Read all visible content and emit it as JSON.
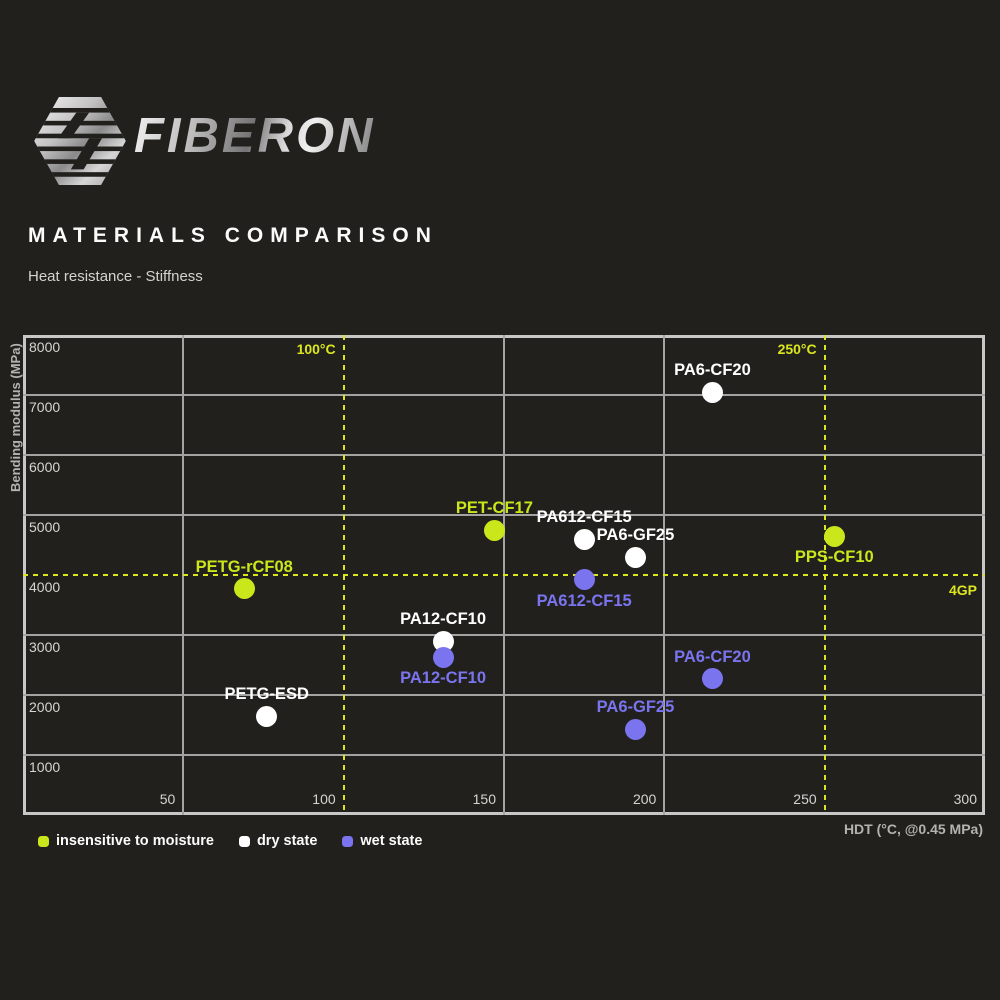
{
  "brand": {
    "name": "FIBERON"
  },
  "header": {
    "title": "MATERIALS COMPARISON",
    "subtitle": "Heat resistance - Stiffness"
  },
  "colors": {
    "background": "#21201d",
    "grid": "#a3a3a1",
    "accent_yellow": "#c9e71b",
    "accent_purple": "#7b74ef",
    "accent_white": "#ffffff",
    "refline_yellow": "#dce61e"
  },
  "chart_data": {
    "type": "scatter",
    "xlabel": "HDT (°C, @0.45 MPa)",
    "ylabel": "Bending modulus (MPa)",
    "xlim": [
      0,
      300
    ],
    "ylim": [
      0,
      8000
    ],
    "x_ticks": [
      50,
      100,
      150,
      200,
      250,
      300
    ],
    "y_ticks": [
      1000,
      2000,
      3000,
      4000,
      5000,
      6000,
      7000,
      8000
    ],
    "grid": true,
    "legend_position": "bottom-left",
    "reference_lines": {
      "vertical": [
        {
          "x": 100,
          "label": "100°C"
        },
        {
          "x": 250,
          "label": "250°C"
        }
      ],
      "horizontal": [
        {
          "y": 4000,
          "label": "4GP"
        }
      ]
    },
    "series": [
      {
        "name": "insensitive to moisture",
        "color": "#c9e71b",
        "points": [
          {
            "label": "PETG-rCF08",
            "x": 69,
            "y": 3770,
            "label_pos": "above"
          },
          {
            "label": "PET-CF17",
            "x": 147,
            "y": 4750,
            "label_pos": "above"
          },
          {
            "label": "PPS-CF10",
            "x": 253,
            "y": 4650,
            "label_pos": "below"
          }
        ]
      },
      {
        "name": "dry state",
        "color": "#ffffff",
        "points": [
          {
            "label": "PETG-ESD",
            "x": 76,
            "y": 1650,
            "label_pos": "above"
          },
          {
            "label": "PA12-CF10",
            "x": 131,
            "y": 2900,
            "label_pos": "above"
          },
          {
            "label": "PA612-CF15",
            "x": 175,
            "y": 4600,
            "label_pos": "above"
          },
          {
            "label": "PA6-GF25",
            "x": 191,
            "y": 4300,
            "label_pos": "above"
          },
          {
            "label": "PA6-CF20",
            "x": 215,
            "y": 7050,
            "label_pos": "above"
          }
        ]
      },
      {
        "name": "wet state",
        "color": "#7b74ef",
        "points": [
          {
            "label": "PA12-CF10",
            "x": 131,
            "y": 2630,
            "label_pos": "below"
          },
          {
            "label": "PA612-CF15",
            "x": 175,
            "y": 3920,
            "label_pos": "below"
          },
          {
            "label": "PA6-GF25",
            "x": 191,
            "y": 1430,
            "label_pos": "above"
          },
          {
            "label": "PA6-CF20",
            "x": 215,
            "y": 2270,
            "label_pos": "above"
          }
        ]
      }
    ]
  }
}
